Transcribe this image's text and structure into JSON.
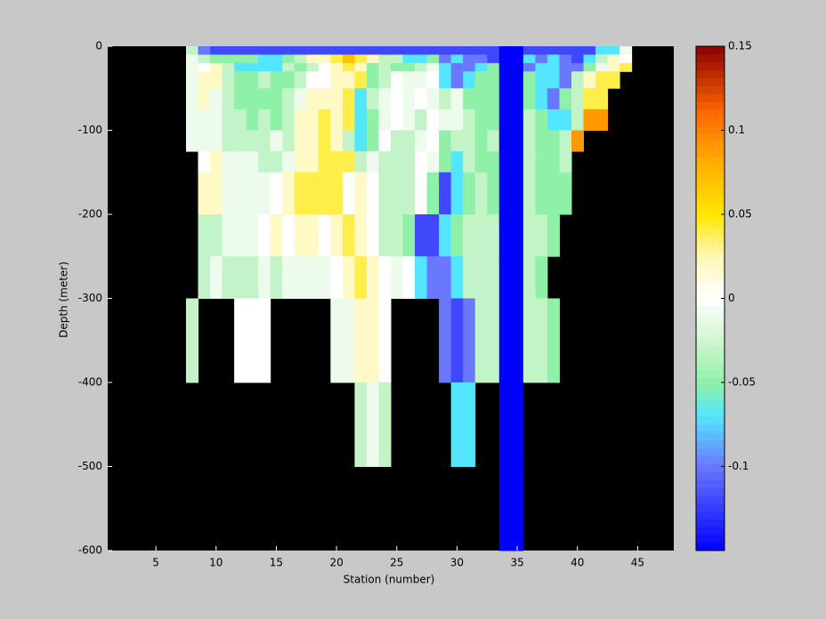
{
  "chart_data": {
    "type": "heatmap",
    "xlabel": "Station (number)",
    "ylabel": "Depth (meter)",
    "xlim": [
      1,
      48
    ],
    "ylim": [
      -600,
      0
    ],
    "xticks": [
      5,
      10,
      15,
      20,
      25,
      30,
      35,
      40,
      45
    ],
    "yticks": [
      0,
      -100,
      -200,
      -300,
      -400,
      -500,
      -600
    ],
    "clim": [
      -0.15,
      0.15
    ],
    "cticks": [
      0.15,
      0.1,
      0.05,
      0,
      -0.05,
      -0.1
    ],
    "background": "#000000",
    "colormap": [
      {
        "value": -0.15,
        "color": "#0000ff"
      },
      {
        "value": -0.1,
        "color": "#6a78ff"
      },
      {
        "value": -0.07,
        "color": "#55e6ff"
      },
      {
        "value": -0.05,
        "color": "#8ff0a8"
      },
      {
        "value": -0.025,
        "color": "#cff5cf"
      },
      {
        "value": 0,
        "color": "#ffffff"
      },
      {
        "value": 0.025,
        "color": "#fff7b8"
      },
      {
        "value": 0.05,
        "color": "#ffe600"
      },
      {
        "value": 0.08,
        "color": "#ffb000"
      },
      {
        "value": 0.11,
        "color": "#ff6a00"
      },
      {
        "value": 0.15,
        "color": "#8b0000"
      }
    ],
    "x": [
      8,
      9,
      10,
      11,
      12,
      13,
      14,
      15,
      16,
      17,
      18,
      19,
      20,
      21,
      22,
      23,
      24,
      25,
      26,
      27,
      28,
      29,
      30,
      31,
      32,
      33,
      34,
      35,
      36,
      37,
      38,
      39,
      40,
      41,
      42,
      43,
      44,
      45
    ],
    "y_edges": [
      0,
      -10,
      -20,
      -30,
      -50,
      -75,
      -100,
      -125,
      -150,
      -200,
      -250,
      -300,
      -400,
      -500,
      -600
    ],
    "z": [
      [
        -0.03,
        -0.1,
        -0.12,
        -0.12,
        -0.12,
        -0.12,
        -0.12,
        -0.12,
        -0.12,
        -0.12,
        -0.12,
        -0.12,
        -0.12,
        -0.12,
        -0.12,
        -0.12,
        -0.12,
        -0.12,
        -0.12,
        -0.12,
        -0.12,
        -0.12,
        -0.12,
        -0.12,
        -0.12,
        -0.12,
        -0.15,
        -0.15,
        -0.12,
        -0.12,
        -0.12,
        -0.12,
        -0.12,
        -0.12,
        -0.07,
        -0.07,
        -0.01,
        null
      ],
      [
        -0.01,
        -0.03,
        -0.05,
        -0.05,
        -0.05,
        -0.05,
        -0.07,
        -0.07,
        -0.05,
        -0.03,
        0.02,
        0.02,
        0.04,
        0.07,
        0.04,
        0.02,
        -0.03,
        -0.03,
        -0.07,
        -0.07,
        -0.05,
        -0.1,
        -0.07,
        -0.1,
        -0.1,
        -0.12,
        -0.15,
        -0.15,
        -0.07,
        -0.1,
        -0.07,
        -0.1,
        -0.12,
        -0.07,
        -0.03,
        0.02,
        0,
        null
      ],
      [
        -0.01,
        0,
        0.02,
        -0.03,
        -0.07,
        -0.07,
        -0.07,
        -0.07,
        -0.03,
        -0.05,
        -0.03,
        0,
        0.02,
        0.04,
        0.02,
        -0.05,
        -0.03,
        -0.05,
        -0.05,
        -0.03,
        -0.01,
        -0.07,
        -0.1,
        -0.1,
        -0.07,
        -0.05,
        -0.15,
        -0.15,
        -0.1,
        -0.07,
        -0.07,
        -0.1,
        -0.1,
        -0.05,
        -0.01,
        0.02,
        0.04,
        null
      ],
      [
        -0.01,
        0.02,
        0.02,
        -0.03,
        -0.05,
        -0.05,
        -0.03,
        -0.05,
        -0.05,
        -0.03,
        0,
        0,
        0.02,
        0.02,
        0.04,
        -0.05,
        -0.03,
        0,
        -0.01,
        -0.01,
        0,
        -0.07,
        -0.1,
        -0.07,
        -0.05,
        -0.05,
        -0.15,
        -0.15,
        -0.05,
        -0.07,
        -0.07,
        -0.1,
        -0.03,
        0.02,
        0.04,
        0.04,
        null,
        null
      ],
      [
        -0.01,
        0.02,
        -0.01,
        -0.03,
        -0.05,
        -0.05,
        -0.05,
        -0.05,
        -0.03,
        -0.01,
        0.02,
        0.02,
        0.02,
        0.04,
        -0.07,
        -0.03,
        -0.01,
        0,
        -0.01,
        0,
        -0.01,
        -0.03,
        -0.01,
        -0.05,
        -0.05,
        -0.05,
        -0.15,
        -0.15,
        -0.05,
        -0.07,
        -0.1,
        -0.05,
        -0.03,
        0.04,
        0.04,
        null,
        null,
        null
      ],
      [
        -0.01,
        -0.01,
        -0.01,
        -0.03,
        -0.03,
        -0.05,
        -0.03,
        -0.05,
        -0.03,
        0.02,
        0.02,
        0.04,
        0.02,
        0.04,
        -0.07,
        -0.05,
        -0.01,
        0,
        -0.01,
        -0.03,
        0,
        -0.01,
        -0.01,
        -0.03,
        -0.05,
        -0.05,
        -0.15,
        -0.15,
        -0.03,
        -0.05,
        -0.07,
        -0.07,
        -0.03,
        0.09,
        0.09,
        null,
        null,
        null
      ],
      [
        -0.01,
        -0.01,
        -0.01,
        -0.03,
        -0.03,
        -0.03,
        -0.03,
        -0.01,
        -0.03,
        0.02,
        0.02,
        0.04,
        0.02,
        -0.03,
        -0.07,
        -0.05,
        0,
        -0.03,
        -0.03,
        -0.01,
        0,
        -0.05,
        -0.03,
        -0.03,
        -0.05,
        -0.03,
        -0.15,
        -0.15,
        -0.03,
        -0.05,
        -0.05,
        -0.03,
        0.09,
        null,
        null,
        null,
        null,
        null
      ],
      [
        null,
        0,
        0.02,
        -0.01,
        -0.01,
        -0.01,
        -0.03,
        -0.03,
        -0.01,
        0.02,
        0.02,
        0.04,
        0.04,
        0.04,
        -0.03,
        -0.01,
        -0.03,
        -0.03,
        -0.03,
        0,
        -0.01,
        -0.05,
        -0.07,
        -0.03,
        -0.05,
        -0.05,
        -0.15,
        -0.15,
        -0.03,
        -0.05,
        -0.05,
        -0.03,
        null,
        null,
        null,
        null,
        null,
        null
      ],
      [
        null,
        0.02,
        0.02,
        -0.01,
        -0.01,
        -0.01,
        -0.01,
        0,
        0.02,
        0.04,
        0.04,
        0.04,
        0.04,
        0,
        0.02,
        0,
        -0.03,
        -0.03,
        -0.03,
        0,
        -0.05,
        -0.12,
        -0.07,
        -0.05,
        -0.03,
        -0.05,
        -0.15,
        -0.15,
        -0.03,
        -0.05,
        -0.05,
        -0.05,
        null,
        null,
        null,
        null,
        null,
        null
      ],
      [
        null,
        -0.03,
        -0.03,
        -0.01,
        -0.01,
        -0.01,
        0,
        0.02,
        0,
        0.02,
        0.02,
        0,
        0.02,
        0.04,
        0.02,
        0,
        -0.03,
        -0.03,
        -0.05,
        -0.12,
        -0.12,
        -0.07,
        -0.05,
        -0.03,
        -0.03,
        -0.03,
        -0.15,
        -0.15,
        -0.03,
        -0.03,
        -0.05,
        null,
        null,
        null,
        null,
        null,
        null,
        null
      ],
      [
        null,
        -0.03,
        -0.01,
        -0.03,
        -0.03,
        -0.03,
        -0.01,
        -0.03,
        -0.01,
        -0.01,
        -0.01,
        -0.01,
        0,
        0.02,
        0.04,
        0.02,
        0,
        -0.01,
        0,
        -0.07,
        -0.1,
        -0.1,
        -0.07,
        -0.03,
        -0.03,
        -0.03,
        -0.15,
        -0.15,
        -0.03,
        -0.05,
        null,
        null,
        null,
        null,
        null,
        null,
        null,
        null
      ],
      [
        -0.03,
        null,
        null,
        null,
        0,
        0,
        0,
        null,
        null,
        null,
        null,
        null,
        -0.01,
        -0.01,
        0.02,
        0.02,
        0,
        null,
        null,
        null,
        null,
        -0.1,
        -0.12,
        -0.1,
        -0.03,
        -0.03,
        -0.15,
        -0.15,
        -0.03,
        -0.03,
        -0.05,
        null,
        null,
        null,
        null,
        null,
        null,
        null
      ],
      [
        null,
        null,
        null,
        null,
        null,
        null,
        null,
        null,
        null,
        null,
        null,
        null,
        null,
        null,
        -0.03,
        -0.01,
        -0.03,
        null,
        null,
        null,
        null,
        null,
        -0.07,
        -0.07,
        null,
        null,
        -0.15,
        -0.15,
        null,
        null,
        null,
        null,
        null,
        null,
        null,
        null,
        null,
        null
      ],
      [
        null,
        null,
        null,
        null,
        null,
        null,
        null,
        null,
        null,
        null,
        null,
        null,
        null,
        null,
        null,
        null,
        null,
        null,
        null,
        null,
        null,
        null,
        null,
        null,
        null,
        null,
        -0.15,
        -0.15,
        null,
        null,
        null,
        null,
        null,
        null,
        null,
        null,
        null,
        null
      ]
    ]
  }
}
